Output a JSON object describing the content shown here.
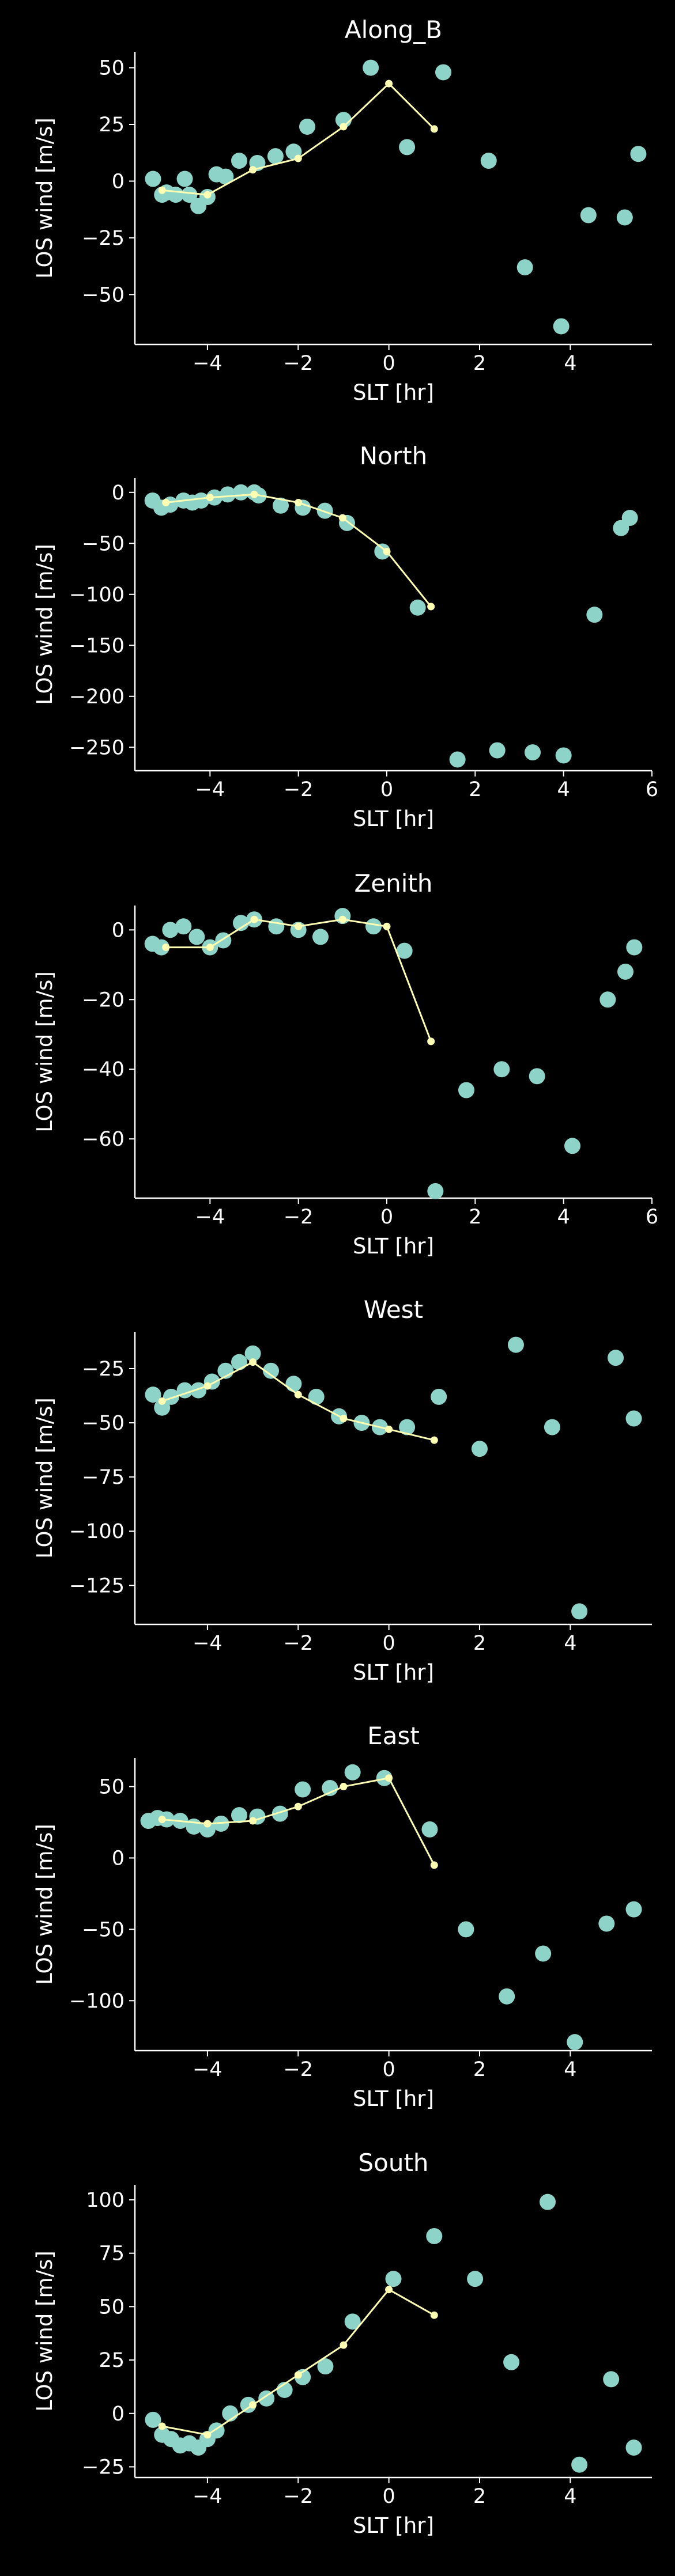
{
  "figure": {
    "background": "#000000",
    "axis_color": "#ffffff",
    "scatter_color": "#8dd3c7",
    "line_color": "#ffffb3"
  },
  "chart_data": [
    {
      "type": "scatter",
      "title": "Along_B",
      "xlabel": "SLT [hr]",
      "ylabel": "LOS wind [m/s]",
      "xlim": [
        -5.6,
        5.8
      ],
      "ylim": [
        -72,
        57
      ],
      "xticks": [
        -4,
        -2,
        0,
        2,
        4
      ],
      "xtick_labels": [
        "−4",
        "−2",
        "0",
        "2",
        "4"
      ],
      "yticks": [
        -50,
        -25,
        0,
        25,
        50
      ],
      "ytick_labels": [
        "−50",
        "−25",
        "0",
        "25",
        "50"
      ],
      "grid": false,
      "series": [
        {
          "kind": "scatter",
          "x": [
            -5.2,
            -5.0,
            -4.9,
            -4.7,
            -4.5,
            -4.4,
            -4.2,
            -4.0,
            -3.8,
            -3.6,
            -3.3,
            -2.9,
            -2.5,
            -2.1,
            -1.8,
            -1.0,
            -0.4,
            0.4,
            1.2,
            2.2,
            3.0,
            3.8,
            4.4,
            5.2,
            5.5
          ],
          "y": [
            1,
            -6,
            -5,
            -6,
            1,
            -6,
            -11,
            -7,
            3,
            2,
            9,
            8,
            11,
            13,
            24,
            27,
            50,
            15,
            48,
            9,
            -38,
            -64,
            -15,
            -16,
            12
          ]
        },
        {
          "kind": "line",
          "x": [
            -5.0,
            -4.0,
            -3.0,
            -2.0,
            -1.0,
            0.0,
            1.0
          ],
          "y": [
            -4,
            -6,
            5,
            10,
            24,
            43,
            23
          ]
        }
      ]
    },
    {
      "type": "scatter",
      "title": "North",
      "xlabel": "SLT [hr]",
      "ylabel": "LOS wind [m/s]",
      "xlim": [
        -5.7,
        6.0
      ],
      "ylim": [
        -273,
        14
      ],
      "xticks": [
        -4,
        -2,
        0,
        2,
        4,
        6
      ],
      "xtick_labels": [
        "−4",
        "−2",
        "0",
        "2",
        "4",
        "6"
      ],
      "yticks": [
        -250,
        -200,
        -150,
        -100,
        -50,
        0
      ],
      "ytick_labels": [
        "−250",
        "−200",
        "−150",
        "−100",
        "−50",
        "0"
      ],
      "grid": false,
      "series": [
        {
          "kind": "scatter",
          "x": [
            -5.3,
            -5.1,
            -4.9,
            -4.6,
            -4.4,
            -4.2,
            -3.9,
            -3.6,
            -3.3,
            -3.0,
            -2.9,
            -2.4,
            -1.9,
            -1.4,
            -0.9,
            -0.1,
            0.7,
            1.6,
            2.5,
            3.3,
            4.0,
            4.7,
            5.3,
            5.5
          ],
          "y": [
            -8,
            -15,
            -12,
            -8,
            -10,
            -8,
            -5,
            -2,
            0,
            0,
            -3,
            -13,
            -15,
            -18,
            -30,
            -58,
            -113,
            -262,
            -253,
            -255,
            -258,
            -120,
            -35,
            -25
          ]
        },
        {
          "kind": "line",
          "x": [
            -5.0,
            -4.0,
            -3.0,
            -2.0,
            -1.0,
            0.0,
            1.0
          ],
          "y": [
            -10,
            -5,
            -2,
            -10,
            -25,
            -58,
            -112
          ]
        }
      ]
    },
    {
      "type": "scatter",
      "title": "Zenith",
      "xlabel": "SLT [hr]",
      "ylabel": "LOS wind [m/s]",
      "xlim": [
        -5.7,
        6.0
      ],
      "ylim": [
        -77,
        7
      ],
      "xticks": [
        -4,
        -2,
        0,
        2,
        4,
        6
      ],
      "xtick_labels": [
        "−4",
        "−2",
        "0",
        "2",
        "4",
        "6"
      ],
      "yticks": [
        -60,
        -40,
        -20,
        0
      ],
      "ytick_labels": [
        "−60",
        "−40",
        "−20",
        "0"
      ],
      "grid": false,
      "series": [
        {
          "kind": "scatter",
          "x": [
            -5.3,
            -5.1,
            -4.9,
            -4.6,
            -4.3,
            -4.0,
            -3.7,
            -3.3,
            -3.0,
            -2.5,
            -2.0,
            -1.5,
            -1.0,
            -0.3,
            0.4,
            1.1,
            1.8,
            2.6,
            3.4,
            4.2,
            5.0,
            5.4,
            5.6
          ],
          "y": [
            -4,
            -5,
            0,
            1,
            -2,
            -5,
            -3,
            2,
            3,
            1,
            0,
            -2,
            4,
            1,
            -6,
            -75,
            -46,
            -40,
            -42,
            -62,
            -20,
            -12,
            -5
          ]
        },
        {
          "kind": "line",
          "x": [
            -5.0,
            -4.0,
            -3.0,
            -2.0,
            -1.0,
            0.0,
            1.0
          ],
          "y": [
            -5,
            -5,
            3,
            1,
            3,
            1,
            -32
          ]
        }
      ]
    },
    {
      "type": "scatter",
      "title": "West",
      "xlabel": "SLT [hr]",
      "ylabel": "LOS wind [m/s]",
      "xlim": [
        -5.6,
        5.8
      ],
      "ylim": [
        -143,
        -8
      ],
      "xticks": [
        -4,
        -2,
        0,
        2,
        4
      ],
      "xtick_labels": [
        "−4",
        "−2",
        "0",
        "2",
        "4"
      ],
      "yticks": [
        -125,
        -100,
        -75,
        -50,
        -25
      ],
      "ytick_labels": [
        "−125",
        "−100",
        "−75",
        "−50",
        "−25"
      ],
      "grid": false,
      "series": [
        {
          "kind": "scatter",
          "x": [
            -5.2,
            -5.0,
            -4.8,
            -4.5,
            -4.2,
            -3.9,
            -3.6,
            -3.3,
            -3.0,
            -2.6,
            -2.1,
            -1.6,
            -1.1,
            -0.6,
            -0.2,
            0.4,
            1.1,
            2.0,
            2.8,
            3.6,
            4.2,
            5.0,
            5.4
          ],
          "y": [
            -37,
            -43,
            -38,
            -35,
            -35,
            -31,
            -26,
            -22,
            -18,
            -26,
            -32,
            -38,
            -47,
            -50,
            -52,
            -52,
            -38,
            -62,
            -14,
            -52,
            -137,
            -20,
            -48
          ]
        },
        {
          "kind": "line",
          "x": [
            -5.0,
            -4.0,
            -3.0,
            -2.0,
            -1.0,
            0.0,
            1.0
          ],
          "y": [
            -40,
            -33,
            -22,
            -37,
            -48,
            -53,
            -58
          ]
        }
      ]
    },
    {
      "type": "scatter",
      "title": "East",
      "xlabel": "SLT [hr]",
      "ylabel": "LOS wind [m/s]",
      "xlim": [
        -5.6,
        5.8
      ],
      "ylim": [
        -135,
        70
      ],
      "xticks": [
        -4,
        -2,
        0,
        2,
        4
      ],
      "xtick_labels": [
        "−4",
        "−2",
        "0",
        "2",
        "4"
      ],
      "yticks": [
        -100,
        -50,
        0,
        50
      ],
      "ytick_labels": [
        "−100",
        "−50",
        "0",
        "50"
      ],
      "grid": false,
      "series": [
        {
          "kind": "scatter",
          "x": [
            -5.3,
            -5.1,
            -4.9,
            -4.6,
            -4.3,
            -4.0,
            -3.7,
            -3.3,
            -2.9,
            -2.4,
            -1.9,
            -1.3,
            -0.8,
            -0.1,
            0.9,
            1.7,
            2.6,
            3.4,
            4.1,
            4.8,
            5.4
          ],
          "y": [
            26,
            28,
            27,
            26,
            22,
            20,
            24,
            30,
            29,
            31,
            48,
            49,
            60,
            56,
            20,
            -50,
            -97,
            -67,
            -129,
            -46,
            -36
          ]
        },
        {
          "kind": "line",
          "x": [
            -5.0,
            -4.0,
            -3.0,
            -2.0,
            -1.0,
            0.0,
            1.0
          ],
          "y": [
            27,
            24,
            26,
            36,
            50,
            56,
            -5
          ]
        }
      ]
    },
    {
      "type": "scatter",
      "title": "South",
      "xlabel": "SLT [hr]",
      "ylabel": "LOS wind [m/s]",
      "xlim": [
        -5.6,
        5.8
      ],
      "ylim": [
        -30,
        107
      ],
      "xticks": [
        -4,
        -2,
        0,
        2,
        4
      ],
      "xtick_labels": [
        "−4",
        "−2",
        "0",
        "2",
        "4"
      ],
      "yticks": [
        -25,
        0,
        25,
        50,
        75,
        100
      ],
      "ytick_labels": [
        "−25",
        "0",
        "25",
        "50",
        "75",
        "100"
      ],
      "grid": false,
      "series": [
        {
          "kind": "scatter",
          "x": [
            -5.2,
            -5.0,
            -4.8,
            -4.6,
            -4.4,
            -4.2,
            -4.0,
            -3.8,
            -3.5,
            -3.1,
            -2.7,
            -2.3,
            -1.9,
            -1.4,
            -0.8,
            0.1,
            1.0,
            1.9,
            2.7,
            3.5,
            4.2,
            4.9,
            5.4
          ],
          "y": [
            -3,
            -10,
            -12,
            -15,
            -14,
            -16,
            -12,
            -8,
            0,
            4,
            7,
            11,
            17,
            22,
            43,
            63,
            83,
            63,
            24,
            99,
            -24,
            16,
            -16
          ]
        },
        {
          "kind": "line",
          "x": [
            -5.0,
            -4.0,
            -3.0,
            -2.0,
            -1.0,
            0.0,
            1.0
          ],
          "y": [
            -6,
            -10,
            4,
            18,
            32,
            58,
            46
          ]
        }
      ]
    }
  ]
}
